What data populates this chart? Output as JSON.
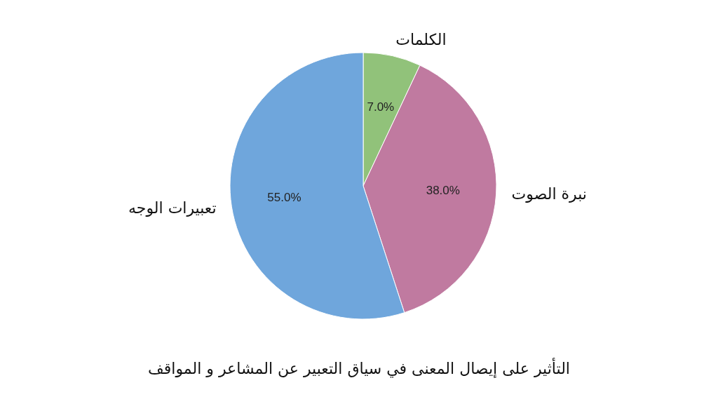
{
  "chart_data": {
    "type": "pie",
    "title": "التأثير على إيصال المعنى في سياق التعبير عن المشاعر و المواقف",
    "categories": [
      "الكلمات",
      "نبرة الصوت",
      "تعبيرات الوجه"
    ],
    "values": [
      7,
      38,
      55
    ],
    "colors": [
      "#91c27a",
      "#c07aa0",
      "#6fa6dc"
    ],
    "value_labels": [
      "7.0%",
      "38.0%",
      "55.0%"
    ]
  }
}
